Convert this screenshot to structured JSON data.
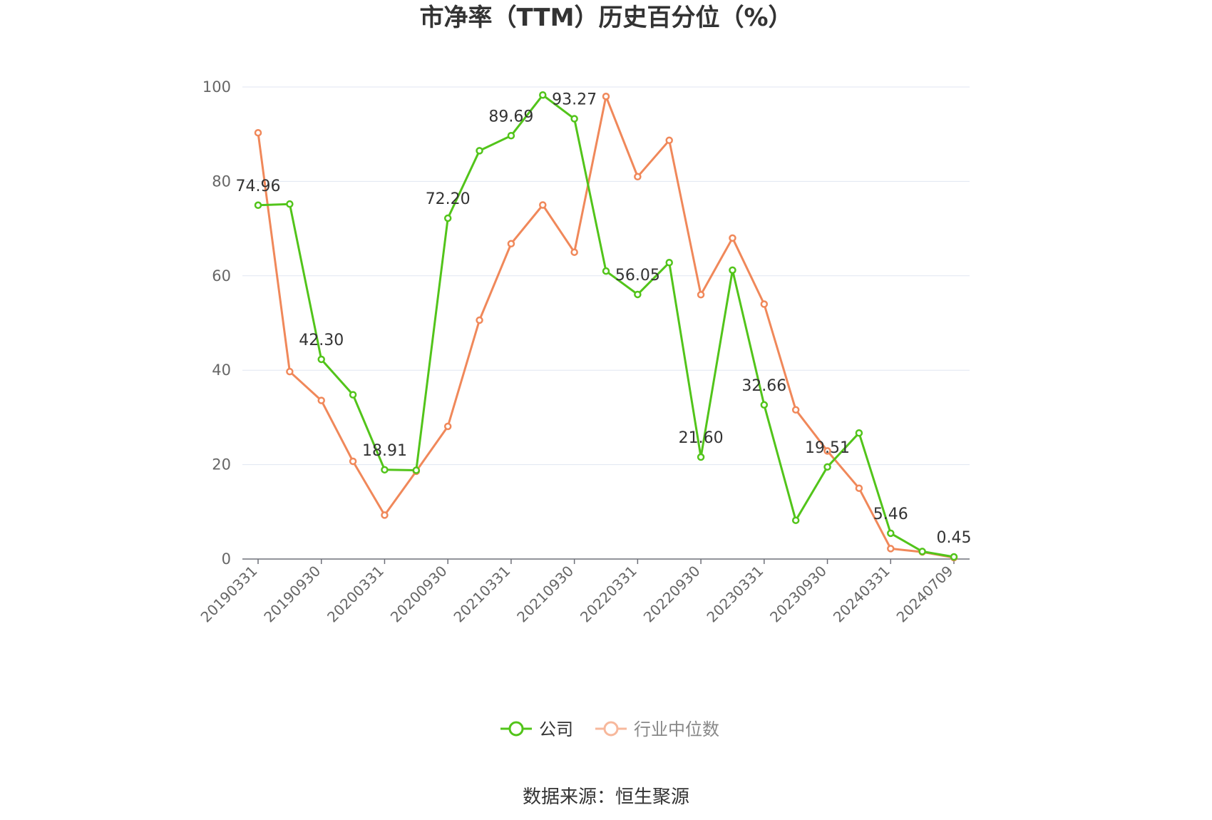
{
  "chart_data": {
    "type": "line",
    "title": "市净率（TTM）历史百分位（%）",
    "xlabel": "",
    "ylabel": "",
    "ylim": [
      0,
      100
    ],
    "yticks": [
      0,
      20,
      40,
      60,
      80,
      100
    ],
    "grid": true,
    "legend_position": "bottom",
    "categories": [
      "20190331",
      "20190630",
      "20190930",
      "20191231",
      "20200331",
      "20200630",
      "20200930",
      "20201231",
      "20210331",
      "20210630",
      "20210930",
      "20211231",
      "20220331",
      "20220630",
      "20220930",
      "20221231",
      "20230331",
      "20230630",
      "20230930",
      "20231231",
      "20240331",
      "20240630",
      "20240709"
    ],
    "x_tick_labels": [
      "20190331",
      "20190930",
      "20200331",
      "20200930",
      "20210331",
      "20210930",
      "20220331",
      "20220930",
      "20230331",
      "20230930",
      "20240331",
      "20240709"
    ],
    "series": [
      {
        "name": "公司",
        "color": "#52c41a",
        "values": [
          74.96,
          75.2,
          42.3,
          34.8,
          18.91,
          18.8,
          72.2,
          86.5,
          89.69,
          98.3,
          93.27,
          61.0,
          56.05,
          62.8,
          21.6,
          61.2,
          32.66,
          8.2,
          19.51,
          26.7,
          5.46,
          1.6,
          0.45
        ],
        "labels": {
          "0": "74.96",
          "2": "42.30",
          "4": "18.91",
          "6": "72.20",
          "8": "89.69",
          "10": "93.27",
          "12": "56.05",
          "14": "21.60",
          "16": "32.66",
          "18": "19.51",
          "20": "5.46",
          "22": "0.45"
        }
      },
      {
        "name": "行业中位数",
        "color": "#f0885a",
        "values": [
          90.3,
          39.7,
          33.6,
          20.7,
          9.3,
          18.6,
          28.1,
          50.6,
          66.8,
          75.0,
          65.0,
          98.0,
          81.0,
          88.7,
          56.0,
          68.0,
          54.0,
          31.6,
          22.9,
          15.0,
          2.2,
          1.5,
          0.3
        ]
      }
    ]
  },
  "source_text": "数据来源：恒生聚源"
}
